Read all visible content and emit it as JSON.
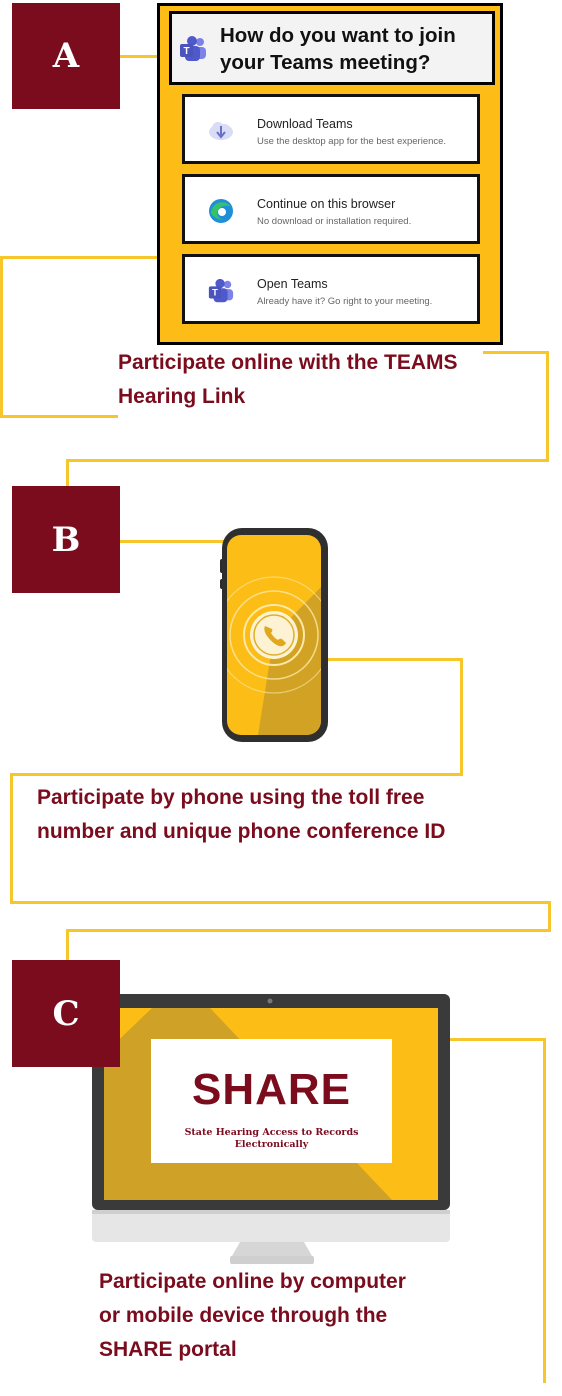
{
  "badges": {
    "a": "A",
    "b": "B",
    "c": "C"
  },
  "teams_dialog": {
    "heading": "How do you want to join your Teams meeting?",
    "options": [
      {
        "title": "Download Teams",
        "subtitle": "Use the desktop app for the best experience.",
        "icon": "download-cloud-icon"
      },
      {
        "title": "Continue on this browser",
        "subtitle": "No download or installation required.",
        "icon": "edge-browser-icon"
      },
      {
        "title": "Open Teams",
        "subtitle": "Already have it? Go right to your meeting.",
        "icon": "teams-icon"
      }
    ]
  },
  "captions": {
    "a_line1": "Participate online with the TEAMS",
    "a_line2": "Hearing Link",
    "b_line1": "Participate by phone using the toll free",
    "b_line2": "number and unique phone conference ID",
    "c_line1": "Participate online by computer",
    "c_line2": "or mobile device through the",
    "c_line3": "SHARE portal"
  },
  "share_screen": {
    "logo": "SHARE",
    "tagline_line1": "State Hearing Access to Records",
    "tagline_line2": "Electronically"
  },
  "colors": {
    "maroon": "#7b0c1e",
    "gold": "#f7c62b",
    "dark_gold": "#c49a2a",
    "frame": "#3a3a3a"
  }
}
